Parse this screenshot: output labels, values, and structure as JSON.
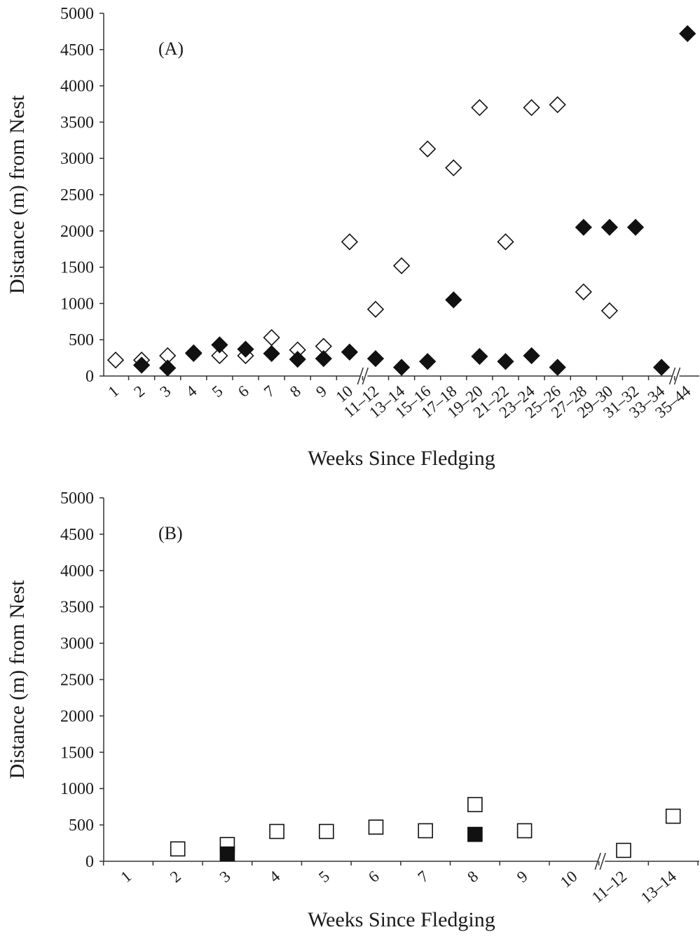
{
  "chart_data": [
    {
      "type": "scatter",
      "panel_label": "(A)",
      "xlabel": "Weeks Since Fledging",
      "ylabel": "Distance (m) from Nest",
      "ylim": [
        0,
        5000
      ],
      "yticks": [
        0,
        500,
        1000,
        1500,
        2000,
        2500,
        3000,
        3500,
        4000,
        4500,
        5000
      ],
      "categories": [
        "1",
        "2",
        "3",
        "4",
        "5",
        "6",
        "7",
        "8",
        "9",
        "10",
        "11–12",
        "13–14",
        "15–16",
        "17–18",
        "19–20",
        "21–22",
        "23–24",
        "25–26",
        "27–28",
        "29–30",
        "31–32",
        "33–34",
        "35–44"
      ],
      "axis_breaks_after": [
        "10",
        "33–34"
      ],
      "series": [
        {
          "marker": "diamond-open",
          "points": [
            {
              "x": "1",
              "y": 220
            },
            {
              "x": "2",
              "y": 220
            },
            {
              "x": "3",
              "y": 280
            },
            {
              "x": "4",
              "y": 310
            },
            {
              "x": "5",
              "y": 280
            },
            {
              "x": "6",
              "y": 280
            },
            {
              "x": "7",
              "y": 530
            },
            {
              "x": "8",
              "y": 360
            },
            {
              "x": "9",
              "y": 410
            },
            {
              "x": "10",
              "y": 1850
            },
            {
              "x": "11–12",
              "y": 920
            },
            {
              "x": "13–14",
              "y": 1520
            },
            {
              "x": "15–16",
              "y": 3130
            },
            {
              "x": "17–18",
              "y": 2870
            },
            {
              "x": "19–20",
              "y": 3700
            },
            {
              "x": "21–22",
              "y": 1850
            },
            {
              "x": "23–24",
              "y": 3700
            },
            {
              "x": "25–26",
              "y": 3740
            },
            {
              "x": "27–28",
              "y": 1160
            },
            {
              "x": "29–30",
              "y": 900
            }
          ]
        },
        {
          "marker": "diamond-filled",
          "points": [
            {
              "x": "2",
              "y": 150
            },
            {
              "x": "3",
              "y": 110
            },
            {
              "x": "4",
              "y": 320
            },
            {
              "x": "5",
              "y": 430
            },
            {
              "x": "6",
              "y": 370
            },
            {
              "x": "7",
              "y": 310
            },
            {
              "x": "8",
              "y": 230
            },
            {
              "x": "9",
              "y": 240
            },
            {
              "x": "10",
              "y": 330
            },
            {
              "x": "11–12",
              "y": 240
            },
            {
              "x": "13–14",
              "y": 120
            },
            {
              "x": "15–16",
              "y": 200
            },
            {
              "x": "17–18",
              "y": 1050
            },
            {
              "x": "19–20",
              "y": 270
            },
            {
              "x": "21–22",
              "y": 200
            },
            {
              "x": "23–24",
              "y": 280
            },
            {
              "x": "25–26",
              "y": 120
            },
            {
              "x": "27–28",
              "y": 2050
            },
            {
              "x": "29–30",
              "y": 2050
            },
            {
              "x": "31–32",
              "y": 2050
            },
            {
              "x": "33–34",
              "y": 120
            },
            {
              "x": "35–44",
              "y": 4720
            }
          ]
        }
      ]
    },
    {
      "type": "scatter",
      "panel_label": "(B)",
      "xlabel": "Weeks Since Fledging",
      "ylabel": "Distance (m) from Nest",
      "ylim": [
        0,
        5000
      ],
      "yticks": [
        0,
        500,
        1000,
        1500,
        2000,
        2500,
        3000,
        3500,
        4000,
        4500,
        5000
      ],
      "categories": [
        "1",
        "2",
        "3",
        "4",
        "5",
        "6",
        "7",
        "8",
        "9",
        "10",
        "11–12",
        "13–14"
      ],
      "axis_breaks_after": [
        "10"
      ],
      "series": [
        {
          "marker": "square-open",
          "points": [
            {
              "x": "2",
              "y": 170
            },
            {
              "x": "3",
              "y": 230
            },
            {
              "x": "4",
              "y": 410
            },
            {
              "x": "5",
              "y": 410
            },
            {
              "x": "6",
              "y": 470
            },
            {
              "x": "7",
              "y": 420
            },
            {
              "x": "8",
              "y": 780
            },
            {
              "x": "9",
              "y": 420
            },
            {
              "x": "11–12",
              "y": 150
            },
            {
              "x": "13–14",
              "y": 620
            }
          ]
        },
        {
          "marker": "square-filled",
          "points": [
            {
              "x": "3",
              "y": 100
            },
            {
              "x": "8",
              "y": 370
            }
          ]
        }
      ]
    }
  ]
}
